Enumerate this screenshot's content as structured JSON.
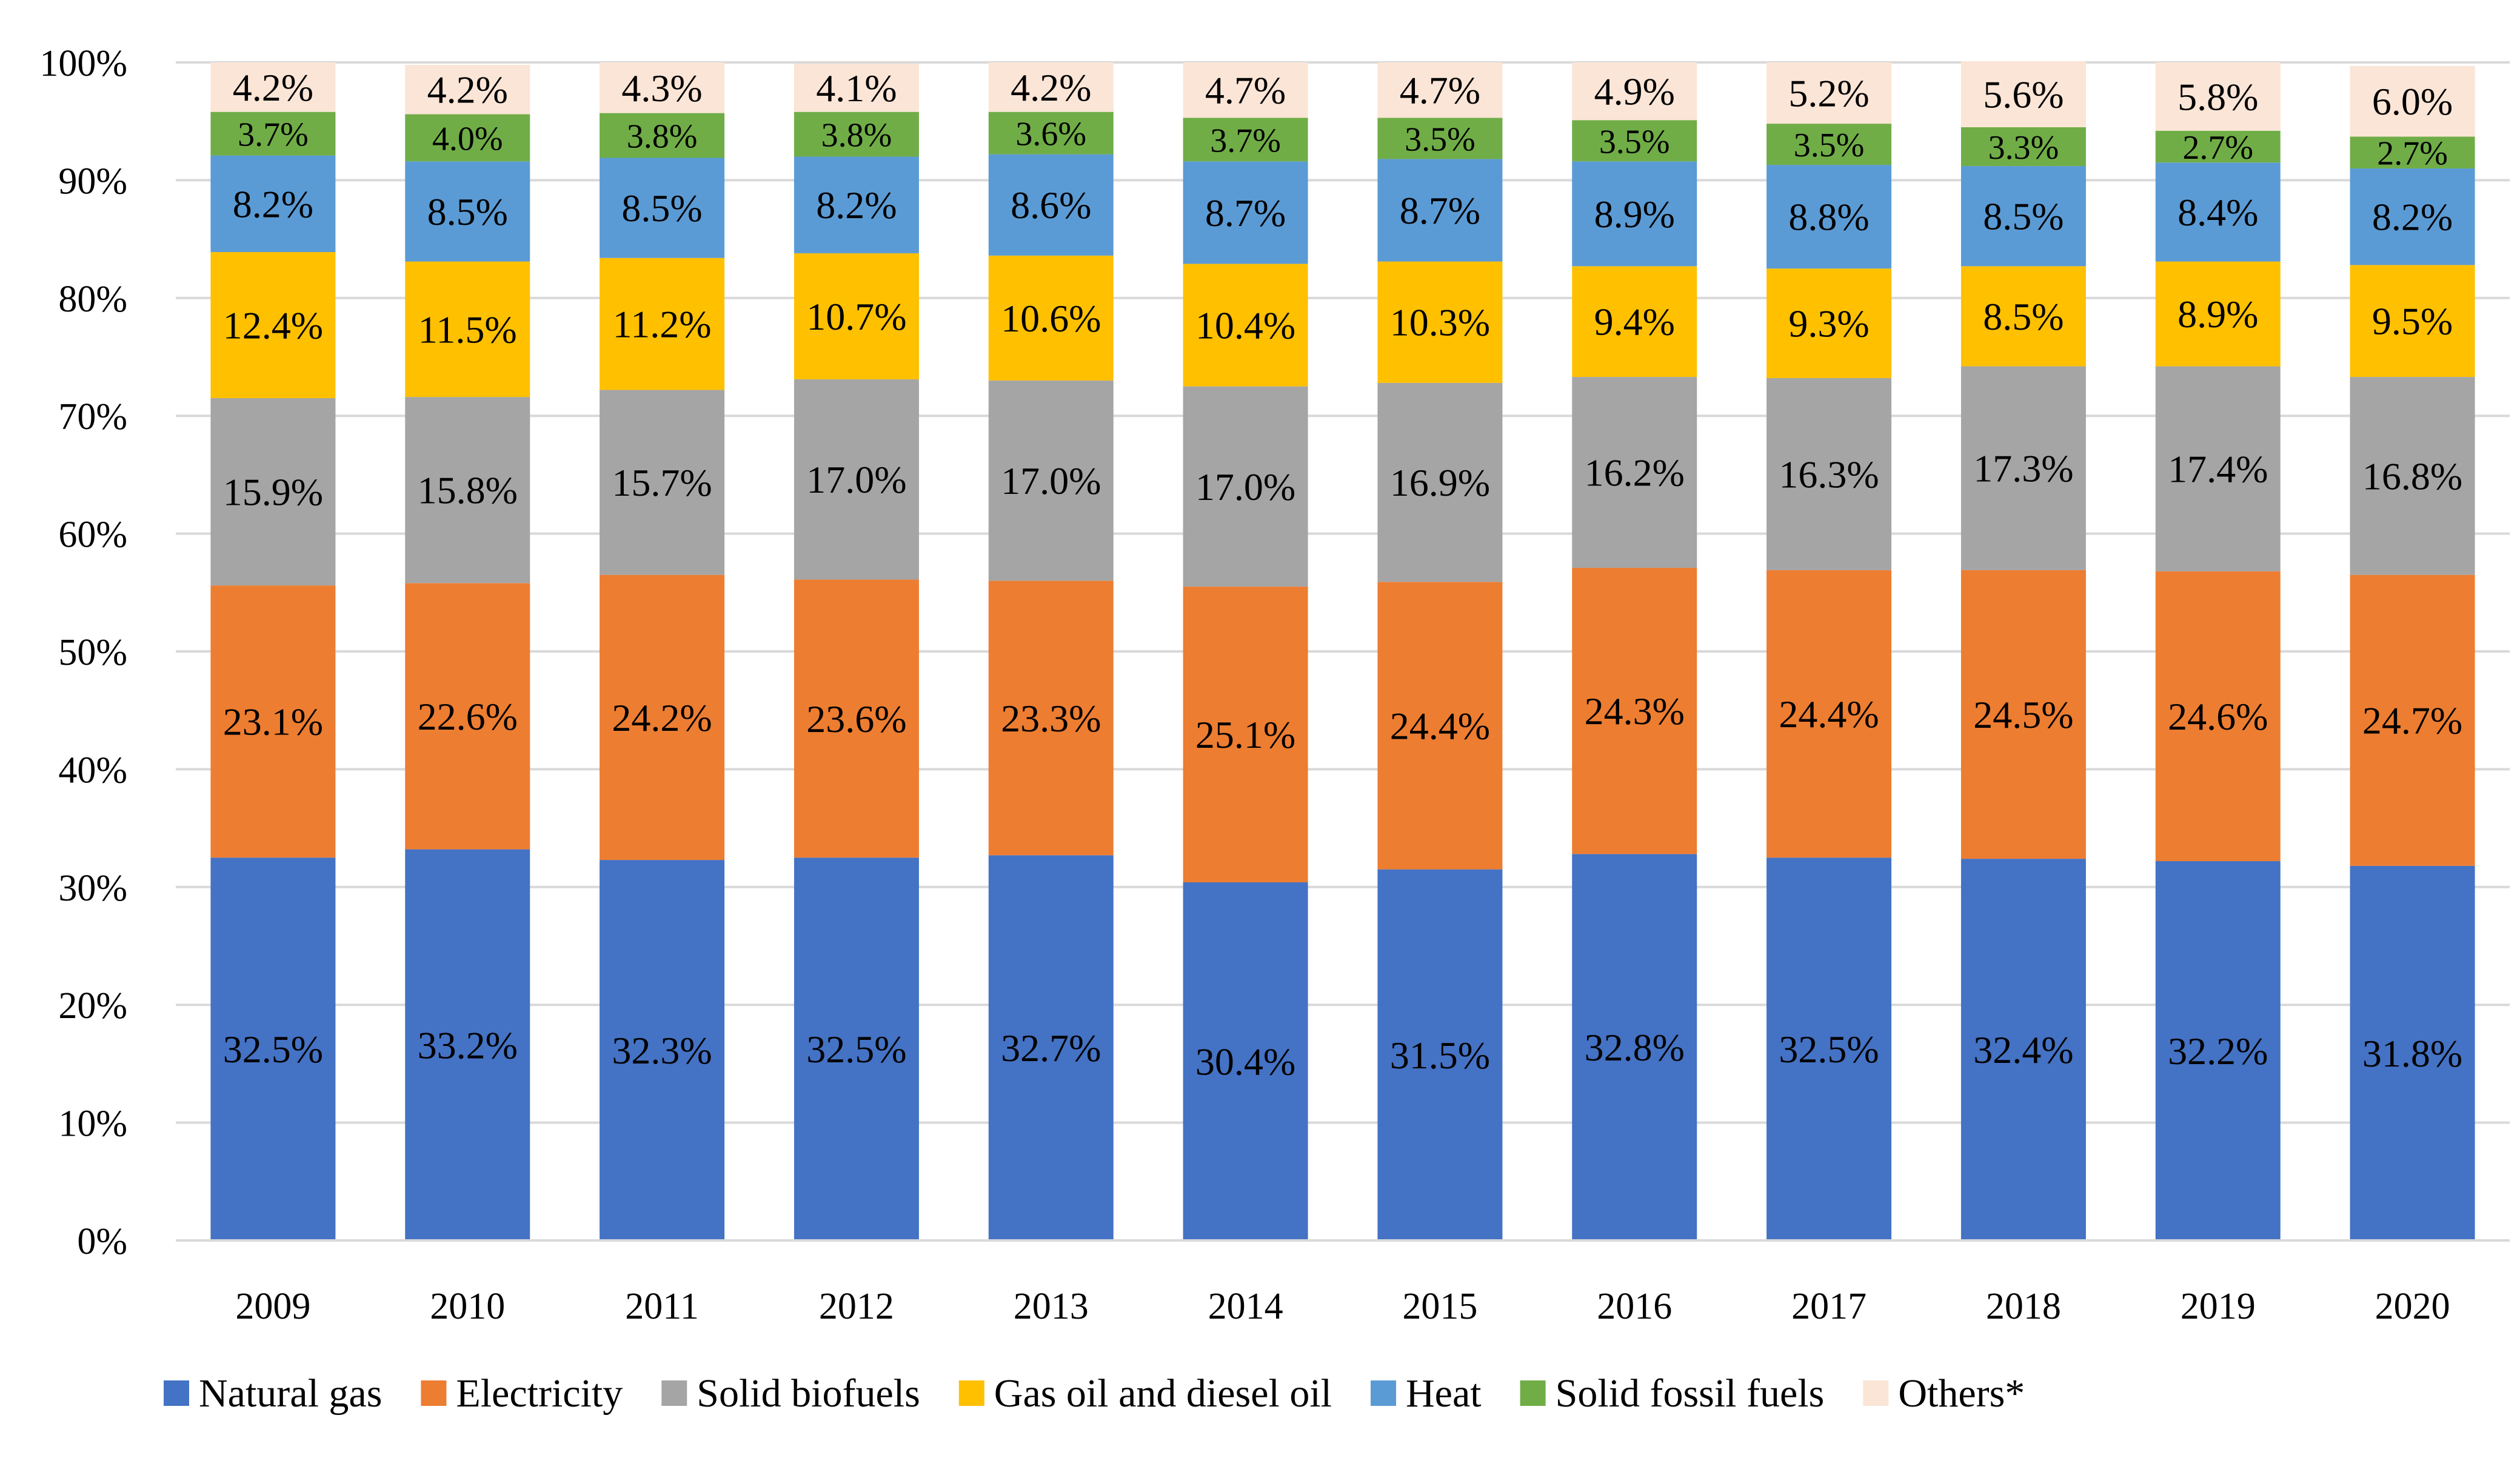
{
  "chart_data": {
    "type": "bar",
    "stacked": true,
    "title": "",
    "xlabel": "",
    "ylabel": "",
    "ylim": [
      0,
      100
    ],
    "y_ticks": [
      "0%",
      "10%",
      "20%",
      "30%",
      "40%",
      "50%",
      "60%",
      "70%",
      "80%",
      "90%",
      "100%"
    ],
    "grid": true,
    "legend_position": "bottom",
    "categories": [
      "2009",
      "2010",
      "2011",
      "2012",
      "2013",
      "2014",
      "2015",
      "2016",
      "2017",
      "2018",
      "2019",
      "2020"
    ],
    "series": [
      {
        "name": "Natural gas",
        "color": "#4472C4",
        "values": [
          32.5,
          33.2,
          32.3,
          32.5,
          32.7,
          30.4,
          31.5,
          32.8,
          32.5,
          32.4,
          32.2,
          31.8
        ],
        "labels": [
          "32.5%",
          "33.2%",
          "32.3%",
          "32.5%",
          "32.7%",
          "30.4%",
          "31.5%",
          "32.8%",
          "32.5%",
          "32.4%",
          "32.2%",
          "31.8%"
        ]
      },
      {
        "name": "Electricity",
        "color": "#ED7D31",
        "values": [
          23.1,
          22.6,
          24.2,
          23.6,
          23.3,
          25.1,
          24.4,
          24.3,
          24.4,
          24.5,
          24.6,
          24.7
        ],
        "labels": [
          "23.1%",
          "22.6%",
          "24.2%",
          "23.6%",
          "23.3%",
          "25.1%",
          "24.4%",
          "24.3%",
          "24.4%",
          "24.5%",
          "24.6%",
          "24.7%"
        ]
      },
      {
        "name": "Solid biofuels",
        "color": "#A5A5A5",
        "values": [
          15.9,
          15.8,
          15.7,
          17.0,
          17.0,
          17.0,
          16.9,
          16.2,
          16.3,
          17.3,
          17.4,
          16.8
        ],
        "labels": [
          "15.9%",
          "15.8%",
          "15.7%",
          "17.0%",
          "17.0%",
          "17.0%",
          "16.9%",
          "16.2%",
          "16.3%",
          "17.3%",
          "17.4%",
          "16.8%"
        ]
      },
      {
        "name": "Gas oil and diesel oil",
        "color": "#FFC000",
        "values": [
          12.4,
          11.5,
          11.2,
          10.7,
          10.6,
          10.4,
          10.3,
          9.4,
          9.3,
          8.5,
          8.9,
          9.5
        ],
        "labels": [
          "12.4%",
          "11.5%",
          "11.2%",
          "10.7%",
          "10.6%",
          "10.4%",
          "10.3%",
          "9.4%",
          "9.3%",
          "8.5%",
          "8.9%",
          "9.5%"
        ]
      },
      {
        "name": "Heat",
        "color": "#5B9BD5",
        "values": [
          8.2,
          8.5,
          8.5,
          8.2,
          8.6,
          8.7,
          8.7,
          8.9,
          8.8,
          8.5,
          8.4,
          8.2
        ],
        "labels": [
          "8.2%",
          "8.5%",
          "8.5%",
          "8.2%",
          "8.6%",
          "8.7%",
          "8.7%",
          "8.9%",
          "8.8%",
          "8.5%",
          "8.4%",
          "8.2%"
        ]
      },
      {
        "name": "Solid fossil fuels",
        "color": "#70AD47",
        "values": [
          3.7,
          4.0,
          3.8,
          3.8,
          3.6,
          3.7,
          3.5,
          3.5,
          3.5,
          3.3,
          2.7,
          2.7
        ],
        "labels": [
          "3.7%",
          "4.0%",
          "3.8%",
          "3.8%",
          "3.6%",
          "3.7%",
          "3.5%",
          "3.5%",
          "3.5%",
          "3.3%",
          "2.7%",
          "2.7%"
        ]
      },
      {
        "name": "Others*",
        "color": "#FBE5D6",
        "values": [
          4.2,
          4.2,
          4.3,
          4.1,
          4.2,
          4.7,
          4.7,
          4.9,
          5.2,
          5.6,
          5.8,
          6.0
        ],
        "labels": [
          "4.2%",
          "4.2%",
          "4.3%",
          "4.1%",
          "4.2%",
          "4.7%",
          "4.7%",
          "4.9%",
          "5.2%",
          "5.6%",
          "5.8%",
          "6.0%"
        ]
      }
    ]
  }
}
